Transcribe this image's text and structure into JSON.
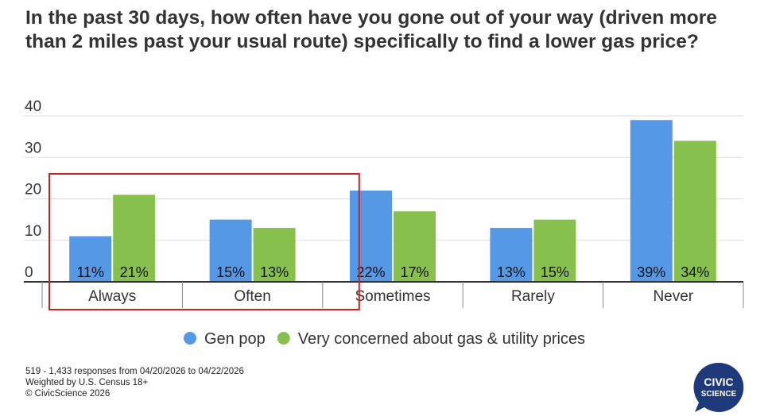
{
  "title": "In the past 30 days, how often have you gone out of your way (driven more than 2 miles past your usual route) specifically to find a lower gas price?",
  "chart_data": {
    "type": "bar",
    "categories": [
      "Always",
      "Often",
      "Sometimes",
      "Rarely",
      "Never"
    ],
    "series": [
      {
        "name": "Gen pop",
        "color": "#5599e6",
        "values": [
          11,
          15,
          22,
          13,
          39
        ],
        "labels": [
          "11%",
          "15%",
          "22%",
          "13%",
          "39%"
        ]
      },
      {
        "name": "Very concerned about gas & utility prices",
        "color": "#88c04e",
        "values": [
          21,
          13,
          17,
          15,
          34
        ],
        "labels": [
          "21%",
          "13%",
          "17%",
          "15%",
          "34%"
        ]
      }
    ],
    "ylim": [
      0,
      40
    ],
    "yticks": [
      "0",
      "10",
      "20",
      "30",
      "40"
    ],
    "grid": true,
    "legend": "bottom",
    "highlight": {
      "categories": [
        "Always",
        "Often"
      ],
      "color": "#cc2222"
    }
  },
  "footer": {
    "line1": "519 - 1,433 responses from 04/20/2026 to 04/22/2026",
    "line2": "Weighted by U.S. Census 18+",
    "line3": "© CivicScience 2026"
  },
  "logo": {
    "line1": "CIVIC",
    "line2": "SCIENCE",
    "color": "#1f3a7a"
  }
}
